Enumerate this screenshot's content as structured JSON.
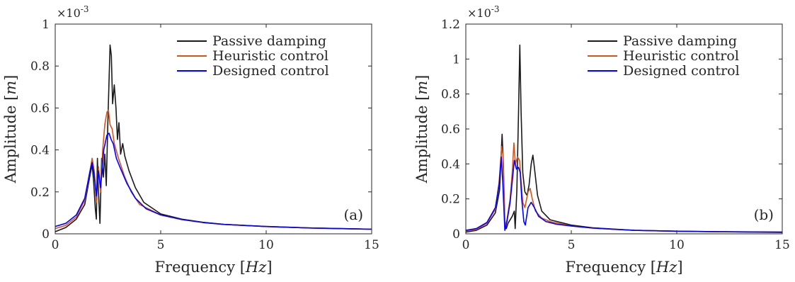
{
  "figure": {
    "legend_position": "top-right",
    "colors": {
      "passive": "#1a1a1a",
      "heuristic": "#d95319",
      "designed": "#0000ff",
      "axes": "#262626"
    }
  },
  "chart_data": [
    {
      "type": "line",
      "panel_tag": "(a)",
      "xlabel": "Frequency [Hz]",
      "ylabel": "Amplitude [m]",
      "y_exponent_label": "×10",
      "y_exponent_power": "-3",
      "xlim": [
        0,
        15
      ],
      "ylim": [
        0,
        1
      ],
      "xticks": [
        0,
        5,
        10,
        15
      ],
      "xtick_labels": [
        "0",
        "5",
        "10",
        "15"
      ],
      "yticks": [
        0,
        0.2,
        0.4,
        0.6,
        0.8,
        1
      ],
      "ytick_labels": [
        "0",
        "0.2",
        "0.4",
        "0.6",
        "0.8",
        "1"
      ],
      "grid": false,
      "legend_position": "top-right",
      "series": [
        {
          "name": "Passive damping",
          "color": "#1a1a1a",
          "points": [
            [
              0,
              0.01
            ],
            [
              0.5,
              0.03
            ],
            [
              1.0,
              0.07
            ],
            [
              1.4,
              0.14
            ],
            [
              1.65,
              0.28
            ],
            [
              1.75,
              0.33
            ],
            [
              1.82,
              0.25
            ],
            [
              1.9,
              0.12
            ],
            [
              1.95,
              0.07
            ],
            [
              2.0,
              0.36
            ],
            [
              2.05,
              0.2
            ],
            [
              2.12,
              0.05
            ],
            [
              2.2,
              0.36
            ],
            [
              2.28,
              0.27
            ],
            [
              2.35,
              0.38
            ],
            [
              2.42,
              0.23
            ],
            [
              2.5,
              0.55
            ],
            [
              2.6,
              0.9
            ],
            [
              2.66,
              0.85
            ],
            [
              2.72,
              0.62
            ],
            [
              2.8,
              0.71
            ],
            [
              2.88,
              0.6
            ],
            [
              2.95,
              0.45
            ],
            [
              3.02,
              0.53
            ],
            [
              3.1,
              0.38
            ],
            [
              3.2,
              0.43
            ],
            [
              3.3,
              0.37
            ],
            [
              3.5,
              0.3
            ],
            [
              3.8,
              0.22
            ],
            [
              4.2,
              0.15
            ],
            [
              5,
              0.095
            ],
            [
              6,
              0.07
            ],
            [
              7,
              0.055
            ],
            [
              8,
              0.045
            ],
            [
              10,
              0.035
            ],
            [
              12,
              0.028
            ],
            [
              15,
              0.022
            ]
          ]
        },
        {
          "name": "Heuristic control",
          "color": "#d95319",
          "points": [
            [
              0,
              0.025
            ],
            [
              0.5,
              0.04
            ],
            [
              1.0,
              0.08
            ],
            [
              1.4,
              0.16
            ],
            [
              1.65,
              0.3
            ],
            [
              1.75,
              0.36
            ],
            [
              1.85,
              0.3
            ],
            [
              1.95,
              0.15
            ],
            [
              2.05,
              0.32
            ],
            [
              2.15,
              0.2
            ],
            [
              2.25,
              0.4
            ],
            [
              2.35,
              0.52
            ],
            [
              2.45,
              0.58
            ],
            [
              2.52,
              0.59
            ],
            [
              2.6,
              0.52
            ],
            [
              2.7,
              0.5
            ],
            [
              2.8,
              0.43
            ],
            [
              3.0,
              0.36
            ],
            [
              3.3,
              0.27
            ],
            [
              3.6,
              0.2
            ],
            [
              4.0,
              0.14
            ],
            [
              5,
              0.09
            ],
            [
              6,
              0.068
            ],
            [
              7,
              0.054
            ],
            [
              8,
              0.045
            ],
            [
              10,
              0.035
            ],
            [
              12,
              0.028
            ],
            [
              15,
              0.022
            ]
          ]
        },
        {
          "name": "Designed control",
          "color": "#0000ff",
          "points": [
            [
              0,
              0.035
            ],
            [
              0.5,
              0.05
            ],
            [
              1.0,
              0.09
            ],
            [
              1.4,
              0.17
            ],
            [
              1.65,
              0.3
            ],
            [
              1.75,
              0.34
            ],
            [
              1.85,
              0.28
            ],
            [
              1.95,
              0.18
            ],
            [
              2.05,
              0.3
            ],
            [
              2.15,
              0.22
            ],
            [
              2.3,
              0.4
            ],
            [
              2.45,
              0.47
            ],
            [
              2.55,
              0.48
            ],
            [
              2.65,
              0.45
            ],
            [
              2.75,
              0.43
            ],
            [
              2.9,
              0.36
            ],
            [
              3.1,
              0.31
            ],
            [
              3.4,
              0.24
            ],
            [
              3.8,
              0.17
            ],
            [
              4.3,
              0.12
            ],
            [
              5,
              0.09
            ],
            [
              6,
              0.068
            ],
            [
              7,
              0.054
            ],
            [
              8,
              0.045
            ],
            [
              10,
              0.035
            ],
            [
              12,
              0.028
            ],
            [
              15,
              0.022
            ]
          ]
        }
      ]
    },
    {
      "type": "line",
      "panel_tag": "(b)",
      "xlabel": "Frequency [Hz]",
      "ylabel": "Amplitude [m]",
      "y_exponent_label": "×10",
      "y_exponent_power": "-3",
      "xlim": [
        0,
        15
      ],
      "ylim": [
        0,
        1.2
      ],
      "xticks": [
        0,
        5,
        10,
        15
      ],
      "xtick_labels": [
        "0",
        "5",
        "10",
        "15"
      ],
      "yticks": [
        0,
        0.2,
        0.4,
        0.6,
        0.8,
        1,
        1.2
      ],
      "ytick_labels": [
        "0",
        "0.2",
        "0.4",
        "0.6",
        "0.8",
        "1",
        "1.2"
      ],
      "grid": false,
      "legend_position": "top-right",
      "series": [
        {
          "name": "Passive damping",
          "color": "#1a1a1a",
          "points": [
            [
              0,
              0.01
            ],
            [
              0.5,
              0.02
            ],
            [
              1.0,
              0.05
            ],
            [
              1.4,
              0.12
            ],
            [
              1.6,
              0.25
            ],
            [
              1.72,
              0.57
            ],
            [
              1.78,
              0.4
            ],
            [
              1.85,
              0.06
            ],
            [
              1.92,
              0.03
            ],
            [
              2.0,
              0.06
            ],
            [
              2.2,
              0.1
            ],
            [
              2.3,
              0.13
            ],
            [
              2.34,
              0.03
            ],
            [
              2.42,
              0.25
            ],
            [
              2.5,
              0.7
            ],
            [
              2.56,
              1.08
            ],
            [
              2.62,
              0.7
            ],
            [
              2.7,
              0.35
            ],
            [
              2.8,
              0.24
            ],
            [
              2.9,
              0.22
            ],
            [
              3.0,
              0.28
            ],
            [
              3.1,
              0.4
            ],
            [
              3.18,
              0.45
            ],
            [
              3.25,
              0.38
            ],
            [
              3.4,
              0.22
            ],
            [
              3.6,
              0.13
            ],
            [
              4.0,
              0.08
            ],
            [
              5,
              0.05
            ],
            [
              6,
              0.035
            ],
            [
              7,
              0.027
            ],
            [
              8,
              0.02
            ],
            [
              10,
              0.015
            ],
            [
              12,
              0.012
            ],
            [
              15,
              0.008
            ]
          ]
        },
        {
          "name": "Heuristic control",
          "color": "#d95319",
          "points": [
            [
              0,
              0.015
            ],
            [
              0.5,
              0.025
            ],
            [
              1.0,
              0.06
            ],
            [
              1.4,
              0.14
            ],
            [
              1.58,
              0.3
            ],
            [
              1.7,
              0.5
            ],
            [
              1.76,
              0.45
            ],
            [
              1.85,
              0.04
            ],
            [
              1.95,
              0.08
            ],
            [
              2.1,
              0.2
            ],
            [
              2.2,
              0.35
            ],
            [
              2.28,
              0.52
            ],
            [
              2.35,
              0.4
            ],
            [
              2.45,
              0.44
            ],
            [
              2.55,
              0.42
            ],
            [
              2.62,
              0.3
            ],
            [
              2.7,
              0.18
            ],
            [
              2.8,
              0.15
            ],
            [
              2.95,
              0.24
            ],
            [
              3.05,
              0.26
            ],
            [
              3.15,
              0.2
            ],
            [
              3.3,
              0.13
            ],
            [
              3.6,
              0.09
            ],
            [
              4.0,
              0.07
            ],
            [
              5,
              0.045
            ],
            [
              6,
              0.033
            ],
            [
              7,
              0.026
            ],
            [
              8,
              0.02
            ],
            [
              10,
              0.015
            ],
            [
              12,
              0.012
            ],
            [
              15,
              0.01
            ]
          ]
        },
        {
          "name": "Designed control",
          "color": "#0000ff",
          "points": [
            [
              0,
              0.02
            ],
            [
              0.5,
              0.03
            ],
            [
              1.0,
              0.065
            ],
            [
              1.4,
              0.15
            ],
            [
              1.58,
              0.28
            ],
            [
              1.68,
              0.44
            ],
            [
              1.75,
              0.3
            ],
            [
              1.85,
              0.02
            ],
            [
              1.95,
              0.07
            ],
            [
              2.1,
              0.18
            ],
            [
              2.2,
              0.3
            ],
            [
              2.3,
              0.42
            ],
            [
              2.4,
              0.37
            ],
            [
              2.5,
              0.38
            ],
            [
              2.58,
              0.35
            ],
            [
              2.65,
              0.2
            ],
            [
              2.75,
              0.07
            ],
            [
              2.82,
              0.05
            ],
            [
              2.95,
              0.15
            ],
            [
              3.1,
              0.18
            ],
            [
              3.25,
              0.15
            ],
            [
              3.45,
              0.1
            ],
            [
              3.8,
              0.07
            ],
            [
              4.3,
              0.055
            ],
            [
              5,
              0.045
            ],
            [
              6,
              0.033
            ],
            [
              7,
              0.026
            ],
            [
              8,
              0.02
            ],
            [
              10,
              0.015
            ],
            [
              12,
              0.012
            ],
            [
              15,
              0.01
            ]
          ]
        }
      ]
    }
  ]
}
